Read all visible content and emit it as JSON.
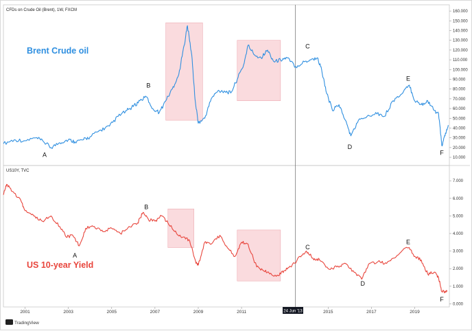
{
  "header": {
    "top_title": "CFDs on Crude Oil (Brent), 1W, FXCM",
    "bottom_title": "US10Y, TVC"
  },
  "footer": {
    "brand": "TradingView",
    "crosshair_date": "24 Jun '13"
  },
  "colors": {
    "oil": "#2f8fe0",
    "yield": "#e8453c",
    "highlight": "#f6c3c8",
    "grid": "#cfcfcf"
  },
  "chart_data": [
    {
      "type": "line",
      "title": "CFDs on Crude Oil (Brent), 1W, FXCM",
      "series_label": "Brent Crude oil",
      "xlim": [
        2000.0,
        2020.6
      ],
      "ylim": [
        3,
        165
      ],
      "yticks": [
        10,
        20,
        30,
        40,
        50,
        60,
        70,
        80,
        90,
        100,
        110,
        120,
        130,
        140,
        150,
        160
      ],
      "ytick_labels": [
        "10.000",
        "20.000",
        "30.000",
        "40.000",
        "50.000",
        "60.000",
        "70.000",
        "80.000",
        "90.000",
        "100.000",
        "110.000",
        "120.000",
        "130.000",
        "140.000",
        "150.000",
        "160.000"
      ],
      "x": [
        2000.0,
        2000.5,
        2001.0,
        2001.5,
        2001.85,
        2002.2,
        2002.6,
        2003.0,
        2003.3,
        2003.7,
        2004.0,
        2004.5,
        2004.9,
        2005.3,
        2005.7,
        2006.0,
        2006.3,
        2006.6,
        2006.9,
        2007.2,
        2007.5,
        2007.8,
        2008.1,
        2008.35,
        2008.5,
        2008.7,
        2008.85,
        2009.0,
        2009.3,
        2009.6,
        2009.9,
        2010.2,
        2010.5,
        2010.8,
        2011.1,
        2011.3,
        2011.6,
        2011.9,
        2012.2,
        2012.5,
        2012.8,
        2013.1,
        2013.5,
        2013.9,
        2014.2,
        2014.5,
        2014.7,
        2014.9,
        2015.2,
        2015.5,
        2015.8,
        2016.05,
        2016.4,
        2016.8,
        2017.2,
        2017.6,
        2018.0,
        2018.4,
        2018.75,
        2019.0,
        2019.3,
        2019.6,
        2019.9,
        2020.1,
        2020.25,
        2020.4,
        2020.55
      ],
      "values": [
        24,
        28,
        27,
        30,
        26,
        20,
        25,
        28,
        26,
        28,
        31,
        38,
        42,
        52,
        58,
        62,
        68,
        72,
        60,
        56,
        68,
        80,
        95,
        125,
        145,
        115,
        70,
        45,
        50,
        70,
        78,
        78,
        76,
        90,
        105,
        125,
        115,
        112,
        120,
        108,
        110,
        112,
        103,
        108,
        110,
        112,
        100,
        78,
        58,
        64,
        48,
        32,
        48,
        52,
        56,
        52,
        68,
        75,
        84,
        68,
        64,
        68,
        58,
        55,
        22,
        32,
        43
      ],
      "annotations": [
        "A",
        "B",
        "C",
        "D",
        "E",
        "F"
      ],
      "annotation_x": [
        2001.9,
        2006.7,
        2014.05,
        2016.0,
        2018.7,
        2020.25
      ],
      "annotation_y": [
        19,
        78,
        118,
        27,
        85,
        21
      ],
      "highlight_x": [
        [
          2007.5,
          2009.2
        ],
        [
          2010.8,
          2012.8
        ]
      ],
      "highlight_y": [
        [
          48,
          148
        ],
        [
          68,
          130
        ]
      ]
    },
    {
      "type": "line",
      "title": "US10Y, TVC",
      "series_label": "US 10-year Yield",
      "xlim": [
        2000.0,
        2020.6
      ],
      "ylim": [
        -0.1,
        7.4
      ],
      "yticks": [
        0,
        1,
        2,
        3,
        4,
        5,
        6,
        7
      ],
      "ytick_labels": [
        "0.000",
        "1.000",
        "2.000",
        "3.000",
        "4.000",
        "5.000",
        "6.000",
        "7.000"
      ],
      "x": [
        2000.0,
        2000.15,
        2000.4,
        2000.8,
        2001.0,
        2001.4,
        2001.8,
        2002.2,
        2002.6,
        2002.9,
        2003.2,
        2003.5,
        2003.8,
        2004.2,
        2004.6,
        2005.0,
        2005.4,
        2005.8,
        2006.2,
        2006.45,
        2006.7,
        2007.0,
        2007.3,
        2007.6,
        2008.0,
        2008.3,
        2008.6,
        2008.9,
        2009.0,
        2009.3,
        2009.6,
        2010.0,
        2010.3,
        2010.7,
        2011.0,
        2011.3,
        2011.7,
        2012.0,
        2012.3,
        2012.7,
        2013.0,
        2013.3,
        2013.7,
        2014.0,
        2014.3,
        2014.6,
        2015.0,
        2015.4,
        2015.8,
        2016.2,
        2016.55,
        2016.9,
        2017.3,
        2017.7,
        2018.0,
        2018.4,
        2018.75,
        2019.0,
        2019.3,
        2019.6,
        2019.9,
        2020.1,
        2020.25,
        2020.5
      ],
      "values": [
        6.2,
        6.8,
        6.4,
        5.9,
        5.3,
        5.0,
        4.7,
        5.0,
        4.4,
        3.8,
        3.9,
        3.3,
        4.3,
        4.4,
        4.1,
        4.3,
        4.0,
        4.4,
        4.6,
        5.2,
        4.8,
        4.7,
        5.0,
        4.6,
        4.0,
        3.8,
        3.6,
        2.3,
        2.2,
        3.5,
        3.4,
        3.9,
        3.3,
        2.7,
        3.5,
        3.4,
        2.1,
        1.9,
        1.7,
        1.6,
        1.9,
        2.1,
        2.7,
        3.0,
        2.6,
        2.5,
        2.0,
        2.1,
        2.3,
        1.8,
        1.4,
        2.3,
        2.4,
        2.3,
        2.6,
        3.0,
        3.2,
        2.7,
        2.5,
        1.7,
        1.8,
        1.5,
        0.7,
        0.7
      ],
      "annotations": [
        "A",
        "B",
        "C",
        "D",
        "E",
        "F"
      ],
      "annotation_x": [
        2003.3,
        2006.6,
        2014.05,
        2016.6,
        2018.7,
        2020.25
      ],
      "annotation_y": [
        3.1,
        5.2,
        2.9,
        1.5,
        3.2,
        0.6
      ],
      "highlight_x": [
        [
          2007.6,
          2008.8
        ],
        [
          2010.8,
          2012.8
        ]
      ],
      "highlight_y": [
        [
          3.2,
          5.4
        ],
        [
          1.3,
          4.2
        ]
      ]
    }
  ],
  "x_axis": {
    "ticks": [
      2001,
      2003,
      2005,
      2007,
      2009,
      2011,
      2015,
      2017,
      2019
    ],
    "tick_labels": [
      "2001",
      "2003",
      "2005",
      "2007",
      "2009",
      "2011",
      "2015",
      "2017",
      "2019"
    ],
    "crosshair_x": 2013.48
  }
}
